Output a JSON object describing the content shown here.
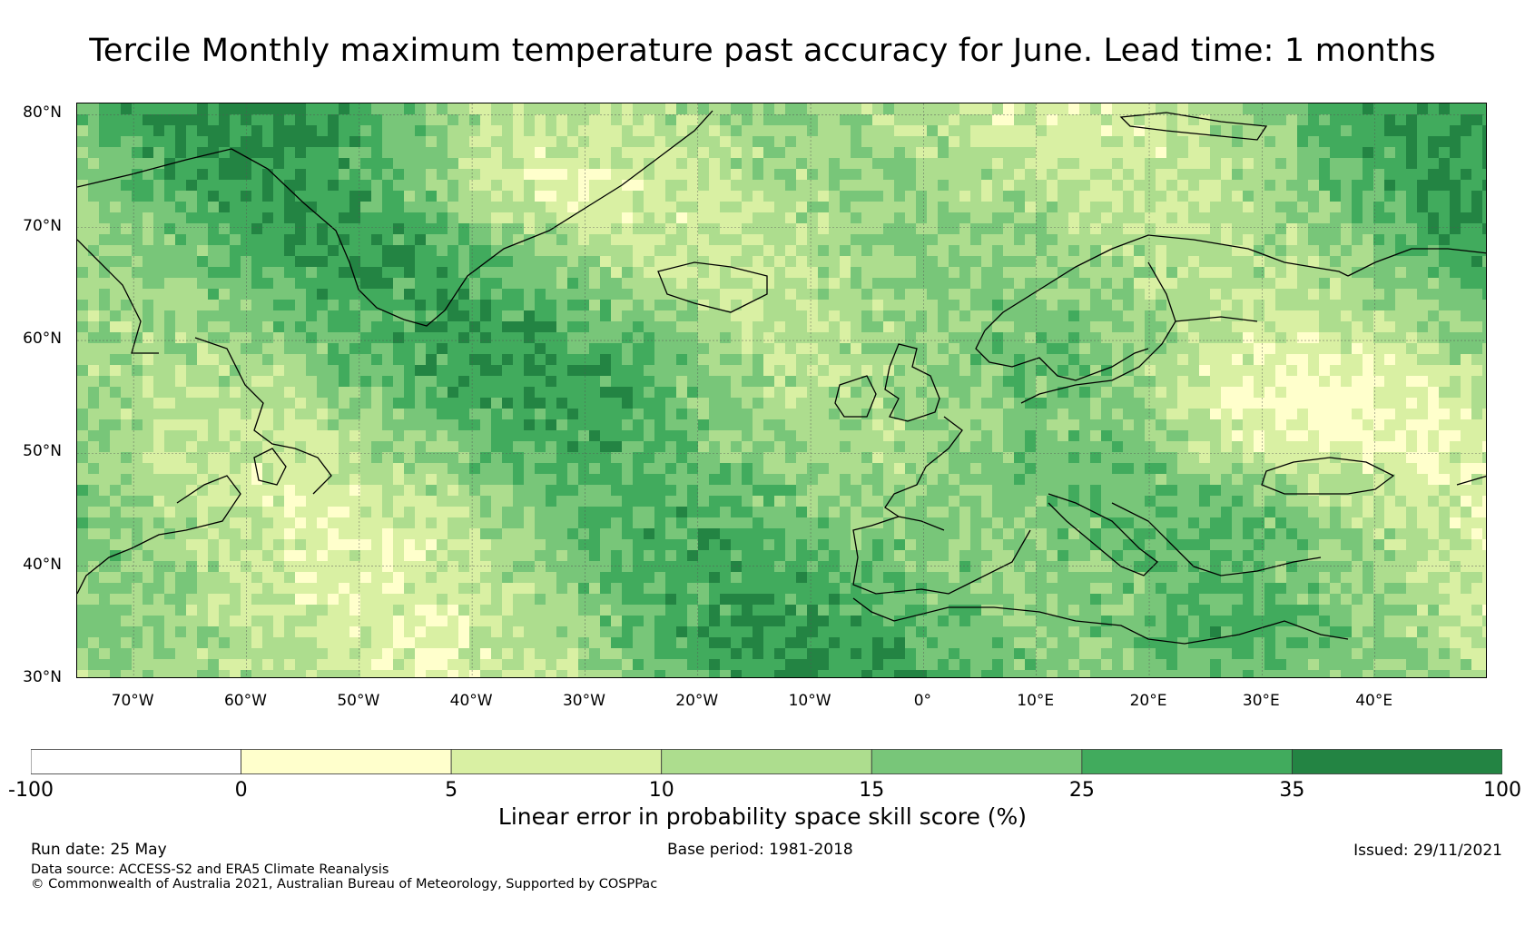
{
  "title": "Tercile Monthly maximum temperature past accuracy for June. Lead time: 1 months",
  "map": {
    "lon_range": [
      -75,
      50
    ],
    "lat_range": [
      30,
      81
    ],
    "lat_ticks": [
      {
        "value": 80,
        "label": "80°N"
      },
      {
        "value": 70,
        "label": "70°N"
      },
      {
        "value": 60,
        "label": "60°N"
      },
      {
        "value": 50,
        "label": "50°N"
      },
      {
        "value": 40,
        "label": "40°N"
      },
      {
        "value": 30,
        "label": "30°N"
      }
    ],
    "lon_ticks": [
      {
        "value": -70,
        "label": "70°W"
      },
      {
        "value": -60,
        "label": "60°W"
      },
      {
        "value": -50,
        "label": "50°W"
      },
      {
        "value": -40,
        "label": "40°W"
      },
      {
        "value": -30,
        "label": "30°W"
      },
      {
        "value": -20,
        "label": "20°W"
      },
      {
        "value": -10,
        "label": "10°W"
      },
      {
        "value": 0,
        "label": "0°"
      },
      {
        "value": 10,
        "label": "10°E"
      },
      {
        "value": 20,
        "label": "20°E"
      },
      {
        "value": 30,
        "label": "30°E"
      },
      {
        "value": 40,
        "label": "40°E"
      }
    ],
    "gridlines": true
  },
  "colorbar": {
    "label": "Linear error in probability space skill score (%)",
    "bounds": [
      -100,
      0,
      5,
      10,
      15,
      25,
      35,
      100
    ],
    "tick_labels": [
      "-100",
      "0",
      "5",
      "10",
      "15",
      "25",
      "35",
      "100"
    ],
    "colors": [
      "#ffffff",
      "#ffffcc",
      "#d9f0a3",
      "#addd8e",
      "#78c679",
      "#41ab5d",
      "#238443"
    ]
  },
  "footer": {
    "run_date": "Run date: 25 May",
    "base_period": "Base period: 1981-2018",
    "issued": "Issued: 29/11/2021",
    "data_source": "Data source: ACCESS-S2 and ERA5 Climate Reanalysis",
    "copyright": "© Commonwealth of Australia 2021, Australian Bureau of Meteorology, Supported by COSPPac"
  }
}
